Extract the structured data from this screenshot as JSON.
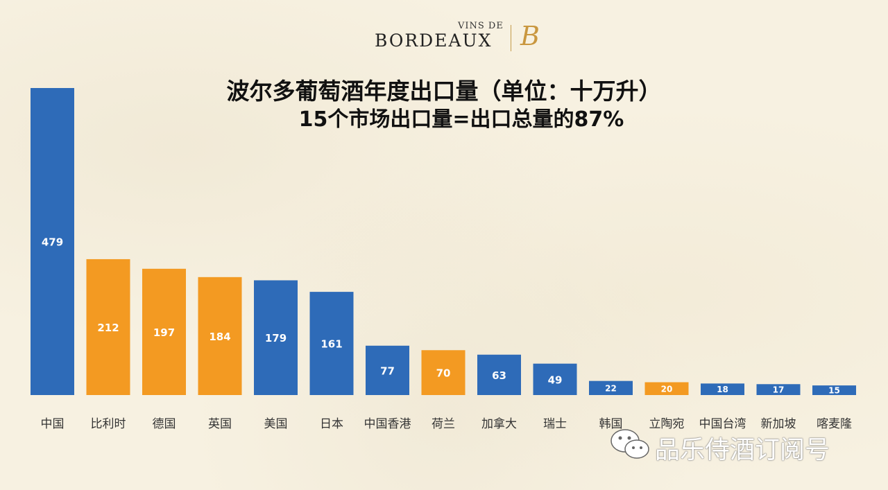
{
  "logo": {
    "vins_de": "VINS DE",
    "bordeaux": "BORDEAUX",
    "mark": "B"
  },
  "title": "波尔多葡萄酒年度出口量（单位：十万升）",
  "subtitle": "15个市场出口量=出口总量的87%",
  "colors": {
    "blue": "#2e6bb8",
    "orange": "#f39a22",
    "background": "#f7f1e1"
  },
  "chart_data": {
    "type": "bar",
    "categories": [
      "中国",
      "比利时",
      "德国",
      "英国",
      "美国",
      "日本",
      "中国香港",
      "荷兰",
      "加拿大",
      "瑞士",
      "韩国",
      "立陶宛",
      "中国台湾",
      "新加坡",
      "喀麦隆"
    ],
    "values": [
      479,
      212,
      197,
      184,
      179,
      161,
      77,
      70,
      63,
      49,
      22,
      20,
      18,
      17,
      15
    ],
    "bar_colors": [
      "blue",
      "orange",
      "orange",
      "orange",
      "blue",
      "blue",
      "blue",
      "orange",
      "blue",
      "blue",
      "blue",
      "orange",
      "blue",
      "blue",
      "blue"
    ],
    "data_labels": [
      "479",
      "212",
      "197",
      "184",
      "179",
      "161",
      "77",
      "70",
      "63",
      "49",
      "22",
      "20",
      "18",
      "17",
      "15"
    ],
    "ylim": [
      0,
      479
    ],
    "grid": false,
    "legend": "none"
  },
  "watermark": {
    "icon": "wechat-icon",
    "text": "品乐侍酒订阅号"
  }
}
